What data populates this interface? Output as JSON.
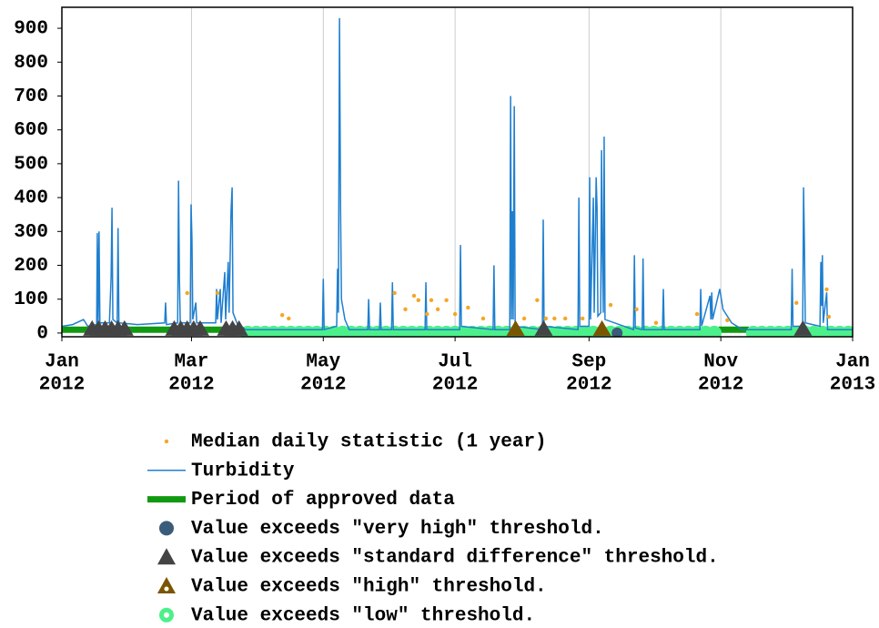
{
  "chart_data": {
    "type": "line",
    "xlim": [
      0,
      366
    ],
    "ylim": [
      -11,
      962
    ],
    "xticks": [
      {
        "value": 0,
        "label": [
          "Jan",
          "2012"
        ]
      },
      {
        "value": 60,
        "label": [
          "Mar",
          "2012"
        ]
      },
      {
        "value": 121,
        "label": [
          "May",
          "2012"
        ]
      },
      {
        "value": 182,
        "label": [
          "Jul",
          "2012"
        ]
      },
      {
        "value": 244,
        "label": [
          "Sep",
          "2012"
        ]
      },
      {
        "value": 305,
        "label": [
          "Nov",
          "2012"
        ]
      },
      {
        "value": 366,
        "label": [
          "Jan",
          "2013"
        ]
      }
    ],
    "yticks": [
      0,
      100,
      200,
      300,
      400,
      500,
      600,
      700,
      800,
      900
    ],
    "grid": "x",
    "series": [
      {
        "name": "Median daily statistic (1 year)",
        "kind": "points",
        "marker": "dot",
        "color": "#f5a623",
        "x": [
          58,
          72,
          102,
          105,
          154,
          159,
          163,
          165,
          169,
          171,
          174,
          178,
          182,
          188,
          195,
          214,
          220,
          224,
          228,
          233,
          241,
          254,
          266,
          275,
          294,
          308,
          340,
          354,
          355
        ],
        "values": [
          118,
          118,
          53,
          43,
          118,
          70,
          110,
          97,
          56,
          97,
          70,
          97,
          56,
          75,
          43,
          43,
          97,
          43,
          43,
          43,
          43,
          83,
          70,
          30,
          56,
          38,
          89,
          129,
          48
        ]
      },
      {
        "name": "Turbidity",
        "kind": "line",
        "width": 1.5,
        "color": "#1f7fcf",
        "x": [
          0,
          5,
          10,
          12,
          16.1,
          16.4,
          16.8,
          17.2,
          17.6,
          22,
          22.8,
          23.2,
          23.6,
          25.6,
          26,
          26.4,
          35,
          47.6,
          48,
          48.4,
          53.6,
          54,
          54.4,
          54.8,
          59.4,
          59.8,
          60.2,
          60.6,
          62,
          62.4,
          71.2,
          71.6,
          72,
          73.3,
          73.7,
          75.4,
          75.8,
          77,
          77.4,
          78.3,
          78.8,
          79.2,
          81,
          85,
          120.6,
          121,
          121.4,
          127.2,
          127.6,
          128,
          128.5,
          129,
          129.4,
          131,
          133,
          141.6,
          142,
          142.4,
          147,
          147.4,
          147.8,
          152.6,
          153,
          153.4,
          168.1,
          168.5,
          168.9,
          184.1,
          184.5,
          184.9,
          199.6,
          200,
          200.4,
          207.3,
          207.7,
          208.1,
          208.5,
          208.9,
          209.4,
          209.8,
          222.4,
          222.8,
          223.2,
          238.9,
          239.3,
          239.7,
          244,
          244.3,
          244.7,
          246,
          246.4,
          247.3,
          247.7,
          248.1,
          249.4,
          249.8,
          250.2,
          250.6,
          251,
          251.4,
          264.6,
          265,
          265.4,
          268.6,
          269,
          269.4,
          278,
          278.4,
          278.8,
          295.3,
          295.7,
          296.1,
          300,
          300.4,
          300.8,
          301.2,
          304.5,
          306,
          310,
          315,
          337.6,
          338,
          338.4,
          342.9,
          343.3,
          343.7,
          344.1,
          350.9,
          351.3,
          351.7,
          352,
          352.4,
          354,
          354.4,
          366
        ],
        "values": [
          20,
          25,
          40,
          20,
          25,
          295,
          30,
          300,
          30,
          30,
          165,
          370,
          40,
          30,
          310,
          30,
          25,
          30,
          90,
          25,
          30,
          450,
          160,
          30,
          30,
          380,
          280,
          40,
          90,
          30,
          30,
          130,
          40,
          130,
          30,
          180,
          40,
          210,
          60,
          360,
          430,
          60,
          30,
          10,
          10,
          160,
          10,
          20,
          190,
          60,
          930,
          360,
          100,
          40,
          10,
          10,
          100,
          10,
          10,
          90,
          10,
          10,
          150,
          10,
          10,
          150,
          10,
          10,
          260,
          20,
          10,
          200,
          10,
          10,
          700,
          40,
          360,
          40,
          670,
          20,
          10,
          335,
          20,
          10,
          400,
          20,
          20,
          460,
          40,
          400,
          60,
          460,
          370,
          50,
          60,
          540,
          240,
          60,
          580,
          40,
          10,
          230,
          15,
          10,
          220,
          10,
          10,
          130,
          10,
          10,
          130,
          20,
          110,
          40,
          120,
          40,
          130,
          70,
          30,
          10,
          10,
          190,
          20,
          20,
          430,
          260,
          30,
          20,
          210,
          80,
          230,
          30,
          120,
          10,
          10
        ]
      },
      {
        "name": "Period of approved data",
        "kind": "line",
        "width": 7,
        "color": "#119a11",
        "x": [
          0,
          84,
          85,
          304,
          318
        ],
        "values": [
          10,
          10,
          null,
          10,
          10
        ]
      },
      {
        "name": "Value exceeds \"very high\" threshold.",
        "kind": "points",
        "marker": "circle",
        "color": "#3b5b7b",
        "x": [
          257
        ],
        "values": [
          0
        ]
      },
      {
        "name": "Value exceeds \"standard difference\" threshold.",
        "kind": "points",
        "marker": "triangle",
        "color": "#444444",
        "x": [
          14,
          17,
          20,
          23,
          26,
          29,
          52,
          55,
          58,
          61,
          64,
          76,
          79,
          82,
          223,
          343
        ],
        "values": [
          0,
          0,
          0,
          0,
          0,
          0,
          0,
          0,
          0,
          0,
          0,
          0,
          0,
          0,
          0,
          0
        ]
      },
      {
        "name": "Value exceeds \"high\" threshold.",
        "kind": "points",
        "marker": "triangle-dot",
        "color": "#7a5500",
        "x": [
          210,
          250
        ],
        "values": [
          0,
          0
        ]
      },
      {
        "name": "Value exceeds \"low\" threshold.",
        "kind": "points",
        "marker": "ring",
        "color": "#4cf08a",
        "x": [
          86,
          90,
          94,
          98,
          102,
          106,
          110,
          114,
          118,
          122,
          126,
          130,
          134,
          138,
          142,
          146,
          150,
          154,
          158,
          162,
          166,
          170,
          174,
          178,
          182,
          186,
          190,
          194,
          198,
          202,
          206,
          210,
          214,
          218,
          222,
          226,
          230,
          234,
          238,
          242,
          246,
          250,
          254,
          258,
          262,
          266,
          270,
          274,
          278,
          282,
          286,
          290,
          294,
          298,
          302,
          320,
          324,
          328,
          332,
          336,
          340,
          344,
          348,
          352,
          356,
          360,
          364
        ],
        "values": [
          0,
          0,
          0,
          0,
          0,
          0,
          0,
          0,
          0,
          0,
          0,
          0,
          0,
          0,
          0,
          0,
          0,
          0,
          0,
          0,
          0,
          0,
          0,
          0,
          0,
          0,
          0,
          0,
          0,
          0,
          0,
          0,
          0,
          0,
          0,
          0,
          0,
          0,
          0,
          0,
          0,
          0,
          0,
          0,
          0,
          0,
          0,
          0,
          0,
          0,
          0,
          0,
          0,
          0,
          0,
          0,
          0,
          0,
          0,
          0,
          0,
          0,
          0,
          0,
          0,
          0,
          0
        ]
      }
    ]
  }
}
